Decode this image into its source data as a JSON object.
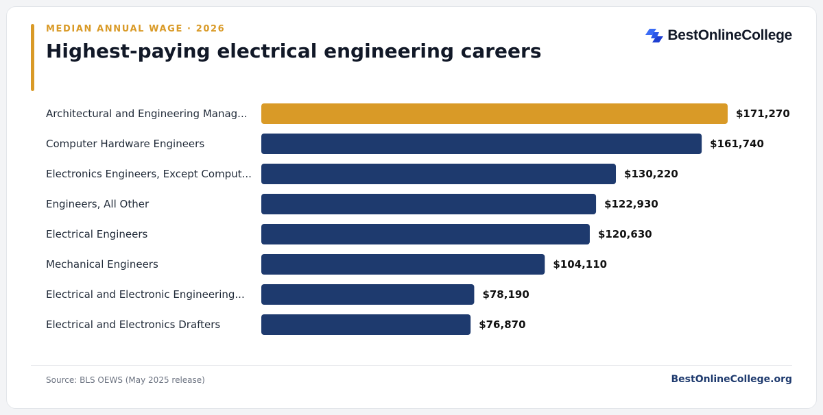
{
  "header": {
    "kicker": "MEDIAN ANNUAL WAGE · 2026",
    "title": "Highest-paying electrical engineering careers",
    "brand_name": "BestOnlineCollege",
    "brand_icon": "bestonlinecollege-logo-icon"
  },
  "colors": {
    "accent": "#d99a27",
    "bar_primary": "#1e3a6e",
    "highlight": "#d99a27"
  },
  "chart_data": {
    "type": "bar",
    "orientation": "horizontal",
    "categories": [
      "Architectural and Engineering Manag...",
      "Computer Hardware Engineers",
      "Electronics Engineers, Except Comput...",
      "Engineers, All Other",
      "Electrical Engineers",
      "Mechanical Engineers",
      "Electrical and Electronic Engineering...",
      "Electrical and Electronics Drafters"
    ],
    "values": [
      171270,
      161740,
      130220,
      122930,
      120630,
      104110,
      78190,
      76870
    ],
    "value_labels": [
      "$171,270",
      "$161,740",
      "$130,220",
      "$122,930",
      "$120,630",
      "$104,110",
      "$78,190",
      "$76,870"
    ],
    "highlight_index": 0,
    "xlim": [
      0,
      171270
    ],
    "grid": false,
    "legend": "none"
  },
  "footer": {
    "source": "Source: BLS OEWS (May 2025 release)",
    "site": "BestOnlineCollege.org"
  }
}
